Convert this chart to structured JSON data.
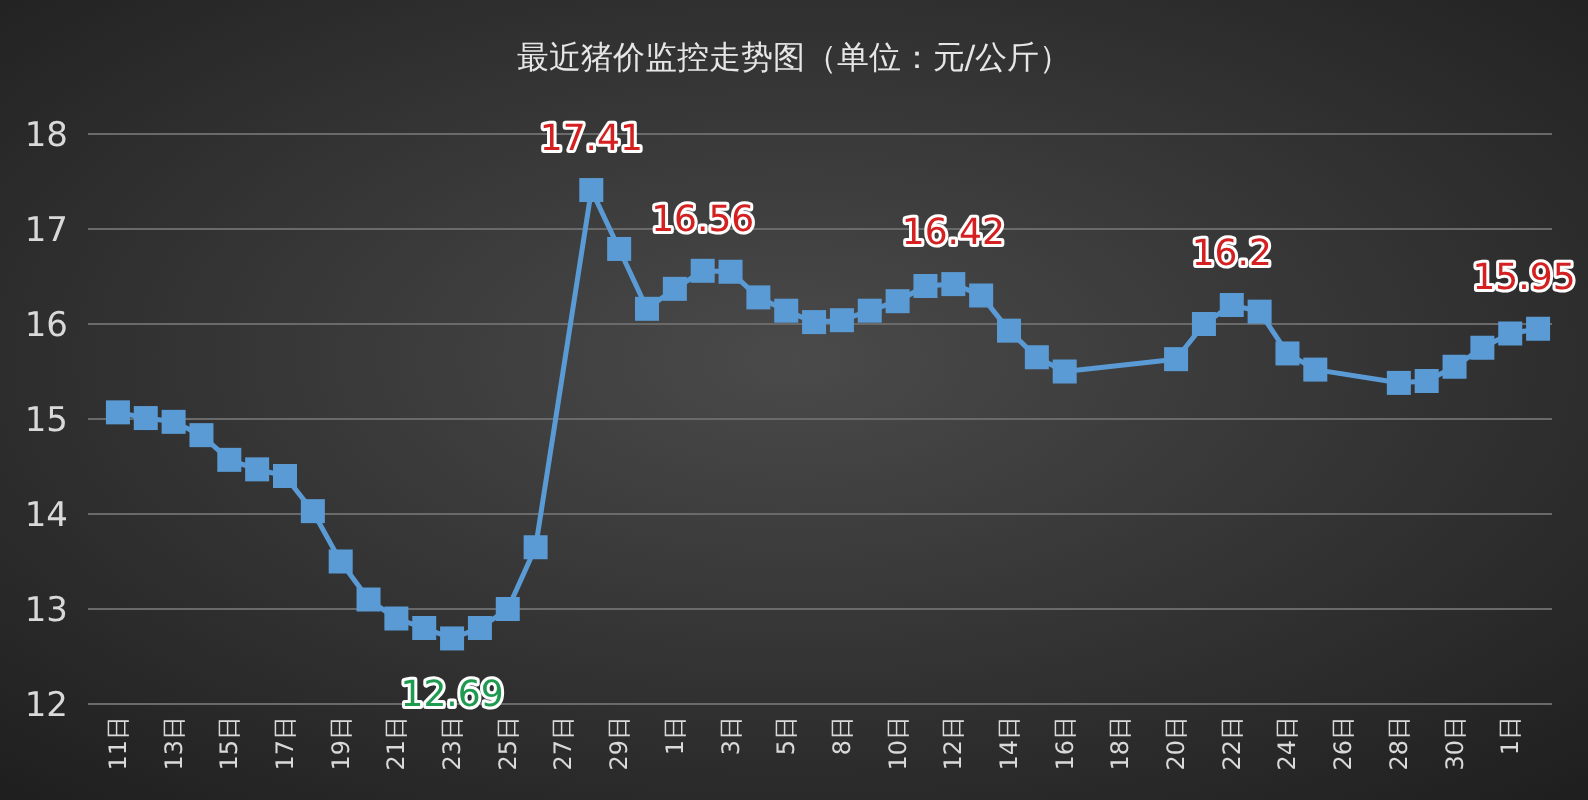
{
  "chart_data": {
    "type": "line",
    "title": "最近猪价监控走势图（单位：元/公斤）",
    "categories": [
      "11日",
      null,
      "13日",
      null,
      "15日",
      null,
      "17日",
      null,
      "19日",
      null,
      "21日",
      null,
      "23日",
      null,
      "25日",
      null,
      "27日",
      null,
      "29日",
      null,
      "1日",
      null,
      "3日",
      null,
      "5日",
      null,
      "8日",
      null,
      "10日",
      null,
      "12日",
      null,
      "14日",
      null,
      "16日",
      null,
      "18日",
      null,
      "20日",
      null,
      "22日",
      null,
      "24日",
      null,
      "26日",
      null,
      "28日",
      null,
      "30日",
      null,
      "1日",
      null
    ],
    "series": [
      {
        "color": "#5b9bd5",
        "values": [
          15.07,
          15.01,
          14.97,
          14.83,
          14.57,
          14.47,
          14.4,
          14.03,
          13.5,
          13.1,
          12.9,
          12.8,
          12.69,
          12.8,
          13.0,
          13.65,
          null,
          17.41,
          16.79,
          16.16,
          16.37,
          16.56,
          16.55,
          16.28,
          16.14,
          16.02,
          16.04,
          16.14,
          16.24,
          16.4,
          16.42,
          16.3,
          15.93,
          15.65,
          15.5,
          null,
          null,
          null,
          15.63,
          16.0,
          16.2,
          16.13,
          15.69,
          15.52,
          null,
          null,
          15.38,
          15.4,
          15.55,
          15.75,
          15.9,
          15.95
        ],
        "value_labels": [
          null,
          null,
          null,
          null,
          null,
          null,
          null,
          null,
          null,
          null,
          null,
          null,
          "12.69",
          null,
          null,
          null,
          null,
          "17.41",
          null,
          null,
          null,
          "16.56",
          null,
          null,
          null,
          null,
          null,
          null,
          null,
          null,
          "16.42",
          null,
          null,
          null,
          null,
          null,
          null,
          null,
          null,
          null,
          "16.2",
          null,
          null,
          null,
          null,
          null,
          null,
          null,
          null,
          null,
          null,
          "15.95"
        ]
      }
    ],
    "ylim": [
      12,
      18
    ],
    "yticks": [
      12,
      13,
      14,
      15,
      16,
      17,
      18
    ],
    "grid": "y",
    "marker": "square",
    "line_style": "solid"
  }
}
